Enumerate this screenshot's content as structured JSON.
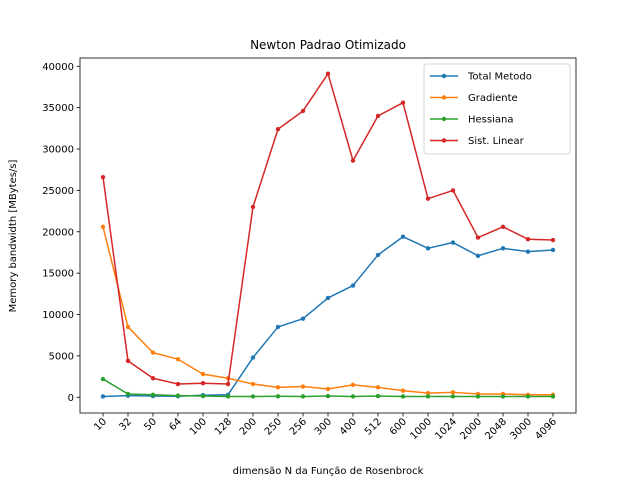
{
  "chart_data": {
    "type": "line",
    "title": "Newton Padrao Otimizado",
    "xlabel": "dimensão N da Função de Rosenbrock",
    "ylabel": "Memory bandwidth [MBytes/s]",
    "categories": [
      "10",
      "32",
      "50",
      "64",
      "100",
      "128",
      "200",
      "250",
      "256",
      "300",
      "400",
      "512",
      "600",
      "1000",
      "1024",
      "2000",
      "2048",
      "3000",
      "4096"
    ],
    "ylim": [
      -1900,
      41000
    ],
    "yticks": [
      0,
      5000,
      10000,
      15000,
      20000,
      25000,
      30000,
      35000,
      40000
    ],
    "ytick_labels": [
      "0",
      "5000",
      "10000",
      "15000",
      "20000",
      "25000",
      "30000",
      "35000",
      "40000"
    ],
    "grid": false,
    "legend_position": "top-right",
    "series": [
      {
        "name": "Total Metodo",
        "color": "#1f77b4",
        "values": [
          100,
          200,
          150,
          130,
          250,
          300,
          4800,
          8500,
          9500,
          12000,
          13500,
          17200,
          19400,
          18000,
          18700,
          17100,
          18000,
          17600,
          17800
        ]
      },
      {
        "name": "Gradiente",
        "color": "#ff7f0e",
        "values": [
          20600,
          8500,
          5400,
          4600,
          2800,
          2300,
          1600,
          1200,
          1300,
          1000,
          1500,
          1200,
          800,
          500,
          600,
          400,
          400,
          300,
          300
        ]
      },
      {
        "name": "Hessiana",
        "color": "#2ca02c",
        "values": [
          2200,
          400,
          300,
          200,
          150,
          100,
          100,
          120,
          100,
          150,
          100,
          150,
          100,
          100,
          100,
          100,
          100,
          100,
          100
        ]
      },
      {
        "name": "Sist. Linear",
        "color": "#d62728",
        "values": [
          26600,
          4400,
          2300,
          1600,
          1700,
          1600,
          23000,
          32400,
          34600,
          39100,
          28600,
          34000,
          35600,
          24000,
          25000,
          19300,
          20600,
          19100,
          19000
        ]
      }
    ]
  }
}
